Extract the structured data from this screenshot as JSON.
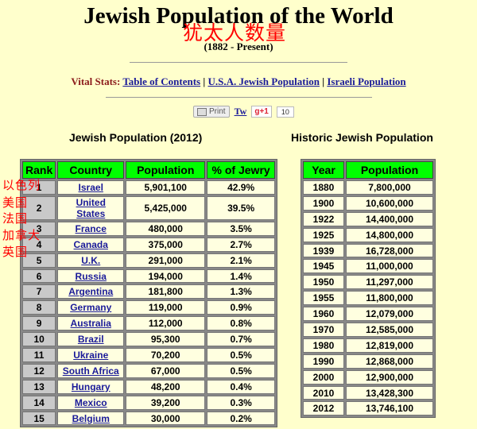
{
  "title": "Jewish Population of the World",
  "chinese_title": "犹太人数量",
  "subtitle": "(1882 - Present)",
  "vital_stats": {
    "label": "Vital Stats:",
    "links": [
      "Table of Contents",
      "U.S.A. Jewish Population",
      "Israeli Population"
    ]
  },
  "share": {
    "print_label": "Print",
    "tweet_label": "Tw",
    "gplus_label": "g+1",
    "count": "10"
  },
  "population_2012": {
    "title": "Jewish Population (2012)",
    "headers": [
      "Rank",
      "Country",
      "Population",
      "% of Jewry"
    ],
    "rows": [
      {
        "rank": "1",
        "country": "Israel",
        "population": "5,901,100",
        "pct": "42.9%"
      },
      {
        "rank": "2",
        "country": "United States",
        "population": "5,425,000",
        "pct": "39.5%"
      },
      {
        "rank": "3",
        "country": "France",
        "population": "480,000",
        "pct": "3.5%"
      },
      {
        "rank": "4",
        "country": "Canada",
        "population": "375,000",
        "pct": "2.7%"
      },
      {
        "rank": "5",
        "country": "U.K.",
        "population": "291,000",
        "pct": "2.1%"
      },
      {
        "rank": "6",
        "country": "Russia",
        "population": "194,000",
        "pct": "1.4%"
      },
      {
        "rank": "7",
        "country": "Argentina",
        "population": "181,800",
        "pct": "1.3%"
      },
      {
        "rank": "8",
        "country": "Germany",
        "population": "119,000",
        "pct": "0.9%"
      },
      {
        "rank": "9",
        "country": "Australia",
        "population": "112,000",
        "pct": "0.8%"
      },
      {
        "rank": "10",
        "country": "Brazil",
        "population": "95,300",
        "pct": "0.7%"
      },
      {
        "rank": "11",
        "country": "Ukraine",
        "population": "70,200",
        "pct": "0.5%"
      },
      {
        "rank": "12",
        "country": "South Africa",
        "population": "67,000",
        "pct": "0.5%"
      },
      {
        "rank": "13",
        "country": "Hungary",
        "population": "48,200",
        "pct": "0.4%"
      },
      {
        "rank": "14",
        "country": "Mexico",
        "population": "39,200",
        "pct": "0.3%"
      },
      {
        "rank": "15",
        "country": "Belgium",
        "population": "30,000",
        "pct": "0.2%"
      }
    ]
  },
  "historic": {
    "title": "Historic Jewish Population",
    "headers": [
      "Year",
      "Population"
    ],
    "rows": [
      {
        "year": "1880",
        "population": "7,800,000"
      },
      {
        "year": "1900",
        "population": "10,600,000"
      },
      {
        "year": "1922",
        "population": "14,400,000"
      },
      {
        "year": "1925",
        "population": "14,800,000"
      },
      {
        "year": "1939",
        "population": "16,728,000"
      },
      {
        "year": "1945",
        "population": "11,000,000"
      },
      {
        "year": "1950",
        "population": "11,297,000"
      },
      {
        "year": "1955",
        "population": "11,800,000"
      },
      {
        "year": "1960",
        "population": "12,079,000"
      },
      {
        "year": "1970",
        "population": "12,585,000"
      },
      {
        "year": "1980",
        "population": "12,819,000"
      },
      {
        "year": "1990",
        "population": "12,868,000"
      },
      {
        "year": "2000",
        "population": "12,900,000"
      },
      {
        "year": "2010",
        "population": "13,428,300"
      },
      {
        "year": "2012",
        "population": "13,746,100"
      }
    ]
  },
  "annotations": [
    "以色列",
    "美国",
    "法国",
    "加拿大",
    "英国"
  ],
  "colors": {
    "background": "#ffffcc",
    "header_green": "#00ff00",
    "link_blue": "#1a1a99",
    "annotation_red": "#ff0000",
    "vital_label": "#8b1a1a"
  }
}
